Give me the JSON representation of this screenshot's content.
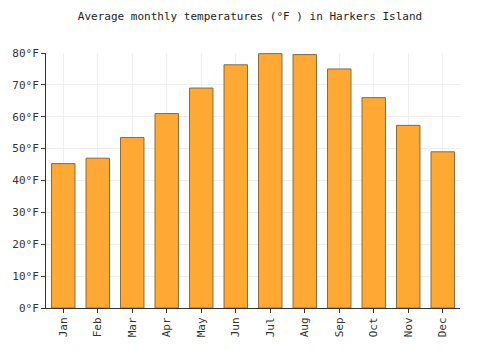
{
  "chart_data": {
    "type": "bar",
    "title": "Average monthly temperatures (°F ) in Harkers Island",
    "categories": [
      "Jan",
      "Feb",
      "Mar",
      "Apr",
      "May",
      "Jun",
      "Jul",
      "Aug",
      "Sep",
      "Oct",
      "Nov",
      "Dec"
    ],
    "values": [
      45.3,
      47,
      53.5,
      61,
      69,
      76.3,
      79.8,
      79.5,
      75,
      66,
      57.3,
      49
    ],
    "color": "#ffa834",
    "ylim": [
      0,
      80
    ],
    "yticks": [
      {
        "value": 0,
        "label": "0°F"
      },
      {
        "value": 10,
        "label": "10°F"
      },
      {
        "value": 20,
        "label": "20°F"
      },
      {
        "value": 30,
        "label": "30°F"
      },
      {
        "value": 40,
        "label": "40°F"
      },
      {
        "value": 50,
        "label": "50°F"
      },
      {
        "value": 60,
        "label": "60°F"
      },
      {
        "value": 70,
        "label": "70°F"
      },
      {
        "value": 80,
        "label": "80°F"
      }
    ],
    "grid": true
  }
}
